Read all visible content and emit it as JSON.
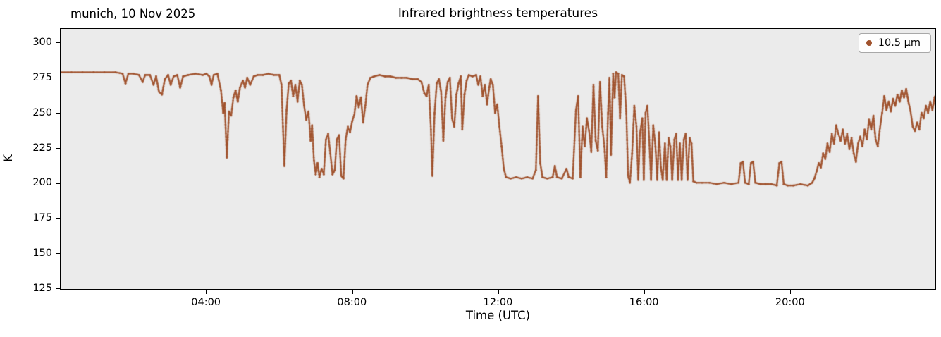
{
  "figure": {
    "annotation": "munich, 10 Nov 2025",
    "title": "Infrared brightness temperatures",
    "xlabel": "Time (UTC)",
    "ylabel": "K",
    "legend": {
      "label": "10.5 μm",
      "marker_color": "#A0522D"
    },
    "colors": {
      "series": "#A0522D",
      "plot_bg": "#EBEBEB",
      "fig_bg": "#FFFFFF",
      "text": "#000000"
    }
  },
  "chart_data": {
    "type": "scatter",
    "title": "Infrared brightness temperatures",
    "annotation": "munich, 10 Nov 2025",
    "xlabel": "Time (UTC)",
    "ylabel": "K",
    "xlim": [
      0,
      24
    ],
    "ylim": [
      124,
      310
    ],
    "grid": false,
    "legend_position": "upper right",
    "xticks": [
      {
        "t": 4,
        "label": "04:00"
      },
      {
        "t": 8,
        "label": "08:00"
      },
      {
        "t": 12,
        "label": "12:00"
      },
      {
        "t": 16,
        "label": "16:00"
      },
      {
        "t": 20,
        "label": "20:00"
      }
    ],
    "yticks": [
      125,
      150,
      175,
      200,
      225,
      250,
      275,
      300
    ],
    "series": [
      {
        "name": "10.5 μm",
        "color": "#A0522D",
        "points": [
          [
            0.0,
            279
          ],
          [
            0.3,
            279
          ],
          [
            0.6,
            279
          ],
          [
            0.9,
            279
          ],
          [
            1.2,
            279
          ],
          [
            1.5,
            279
          ],
          [
            1.7,
            278
          ],
          [
            1.78,
            271
          ],
          [
            1.86,
            278
          ],
          [
            2.0,
            278
          ],
          [
            2.15,
            277
          ],
          [
            2.25,
            272
          ],
          [
            2.32,
            277
          ],
          [
            2.45,
            277
          ],
          [
            2.55,
            270
          ],
          [
            2.62,
            276
          ],
          [
            2.7,
            265
          ],
          [
            2.78,
            263
          ],
          [
            2.86,
            274
          ],
          [
            2.95,
            277
          ],
          [
            3.02,
            270
          ],
          [
            3.1,
            276
          ],
          [
            3.2,
            277
          ],
          [
            3.28,
            268
          ],
          [
            3.36,
            276
          ],
          [
            3.5,
            277
          ],
          [
            3.7,
            278
          ],
          [
            3.9,
            277
          ],
          [
            4.0,
            278
          ],
          [
            4.08,
            276
          ],
          [
            4.14,
            270
          ],
          [
            4.2,
            277
          ],
          [
            4.3,
            278
          ],
          [
            4.4,
            266
          ],
          [
            4.46,
            250
          ],
          [
            4.5,
            257
          ],
          [
            4.56,
            218
          ],
          [
            4.62,
            251
          ],
          [
            4.68,
            248
          ],
          [
            4.74,
            261
          ],
          [
            4.8,
            266
          ],
          [
            4.86,
            258
          ],
          [
            4.92,
            268
          ],
          [
            5.0,
            273
          ],
          [
            5.06,
            268
          ],
          [
            5.12,
            275
          ],
          [
            5.2,
            270
          ],
          [
            5.3,
            276
          ],
          [
            5.4,
            277
          ],
          [
            5.55,
            277
          ],
          [
            5.7,
            278
          ],
          [
            5.85,
            277
          ],
          [
            6.0,
            277
          ],
          [
            6.06,
            270
          ],
          [
            6.1,
            240
          ],
          [
            6.14,
            212
          ],
          [
            6.2,
            252
          ],
          [
            6.26,
            271
          ],
          [
            6.32,
            273
          ],
          [
            6.38,
            262
          ],
          [
            6.44,
            270
          ],
          [
            6.5,
            258
          ],
          [
            6.56,
            273
          ],
          [
            6.62,
            270
          ],
          [
            6.68,
            255
          ],
          [
            6.74,
            245
          ],
          [
            6.8,
            251
          ],
          [
            6.86,
            230
          ],
          [
            6.9,
            241
          ],
          [
            6.95,
            216
          ],
          [
            7.0,
            206
          ],
          [
            7.05,
            214
          ],
          [
            7.1,
            204
          ],
          [
            7.16,
            210
          ],
          [
            7.22,
            206
          ],
          [
            7.28,
            231
          ],
          [
            7.34,
            235
          ],
          [
            7.4,
            221
          ],
          [
            7.46,
            206
          ],
          [
            7.52,
            209
          ],
          [
            7.58,
            231
          ],
          [
            7.64,
            234
          ],
          [
            7.7,
            205
          ],
          [
            7.76,
            203
          ],
          [
            7.82,
            231
          ],
          [
            7.88,
            240
          ],
          [
            7.94,
            236
          ],
          [
            8.0,
            244
          ],
          [
            8.06,
            249
          ],
          [
            8.12,
            262
          ],
          [
            8.18,
            254
          ],
          [
            8.24,
            261
          ],
          [
            8.3,
            243
          ],
          [
            8.36,
            255
          ],
          [
            8.42,
            270
          ],
          [
            8.5,
            275
          ],
          [
            8.6,
            276
          ],
          [
            8.75,
            277
          ],
          [
            8.9,
            276
          ],
          [
            9.05,
            276
          ],
          [
            9.2,
            275
          ],
          [
            9.35,
            275
          ],
          [
            9.5,
            275
          ],
          [
            9.65,
            274
          ],
          [
            9.8,
            274
          ],
          [
            9.9,
            272
          ],
          [
            9.98,
            264
          ],
          [
            10.04,
            262
          ],
          [
            10.1,
            270
          ],
          [
            10.16,
            238
          ],
          [
            10.2,
            205
          ],
          [
            10.26,
            250
          ],
          [
            10.32,
            271
          ],
          [
            10.38,
            274
          ],
          [
            10.44,
            265
          ],
          [
            10.5,
            230
          ],
          [
            10.56,
            261
          ],
          [
            10.62,
            272
          ],
          [
            10.68,
            275
          ],
          [
            10.74,
            246
          ],
          [
            10.8,
            240
          ],
          [
            10.86,
            263
          ],
          [
            10.92,
            271
          ],
          [
            10.98,
            276
          ],
          [
            11.02,
            238
          ],
          [
            11.08,
            263
          ],
          [
            11.14,
            273
          ],
          [
            11.2,
            277
          ],
          [
            11.3,
            276
          ],
          [
            11.4,
            277
          ],
          [
            11.46,
            270
          ],
          [
            11.52,
            276
          ],
          [
            11.58,
            262
          ],
          [
            11.64,
            270
          ],
          [
            11.7,
            256
          ],
          [
            11.76,
            268
          ],
          [
            11.8,
            274
          ],
          [
            11.86,
            270
          ],
          [
            11.92,
            250
          ],
          [
            11.98,
            256
          ],
          [
            12.04,
            240
          ],
          [
            12.1,
            226
          ],
          [
            12.16,
            210
          ],
          [
            12.22,
            204
          ],
          [
            12.35,
            203
          ],
          [
            12.5,
            204
          ],
          [
            12.65,
            203
          ],
          [
            12.8,
            204
          ],
          [
            12.95,
            203
          ],
          [
            13.04,
            209
          ],
          [
            13.1,
            262
          ],
          [
            13.16,
            214
          ],
          [
            13.22,
            204
          ],
          [
            13.35,
            203
          ],
          [
            13.5,
            204
          ],
          [
            13.56,
            212
          ],
          [
            13.62,
            204
          ],
          [
            13.75,
            203
          ],
          [
            13.88,
            210
          ],
          [
            13.94,
            204
          ],
          [
            14.05,
            203
          ],
          [
            14.14,
            252
          ],
          [
            14.2,
            262
          ],
          [
            14.26,
            204
          ],
          [
            14.32,
            240
          ],
          [
            14.38,
            226
          ],
          [
            14.44,
            246
          ],
          [
            14.5,
            237
          ],
          [
            14.56,
            222
          ],
          [
            14.62,
            270
          ],
          [
            14.68,
            230
          ],
          [
            14.74,
            223
          ],
          [
            14.8,
            272
          ],
          [
            14.86,
            240
          ],
          [
            14.92,
            226
          ],
          [
            14.97,
            204
          ],
          [
            15.02,
            250
          ],
          [
            15.06,
            275
          ],
          [
            15.1,
            220
          ],
          [
            15.16,
            278
          ],
          [
            15.2,
            261
          ],
          [
            15.24,
            279
          ],
          [
            15.3,
            278
          ],
          [
            15.35,
            246
          ],
          [
            15.4,
            277
          ],
          [
            15.46,
            276
          ],
          [
            15.52,
            251
          ],
          [
            15.57,
            205
          ],
          [
            15.62,
            200
          ],
          [
            15.68,
            221
          ],
          [
            15.74,
            255
          ],
          [
            15.8,
            240
          ],
          [
            15.85,
            202
          ],
          [
            15.9,
            236
          ],
          [
            15.96,
            246
          ],
          [
            16.0,
            202
          ],
          [
            16.05,
            250
          ],
          [
            16.1,
            255
          ],
          [
            16.15,
            231
          ],
          [
            16.2,
            202
          ],
          [
            16.26,
            241
          ],
          [
            16.32,
            226
          ],
          [
            16.37,
            202
          ],
          [
            16.42,
            236
          ],
          [
            16.47,
            211
          ],
          [
            16.52,
            202
          ],
          [
            16.58,
            228
          ],
          [
            16.63,
            202
          ],
          [
            16.68,
            232
          ],
          [
            16.73,
            226
          ],
          [
            16.78,
            202
          ],
          [
            16.84,
            231
          ],
          [
            16.89,
            235
          ],
          [
            16.94,
            202
          ],
          [
            16.99,
            228
          ],
          [
            17.04,
            202
          ],
          [
            17.1,
            231
          ],
          [
            17.15,
            235
          ],
          [
            17.2,
            202
          ],
          [
            17.26,
            232
          ],
          [
            17.31,
            228
          ],
          [
            17.36,
            201
          ],
          [
            17.45,
            200
          ],
          [
            17.6,
            200
          ],
          [
            17.8,
            200
          ],
          [
            18.0,
            199
          ],
          [
            18.2,
            200
          ],
          [
            18.4,
            199
          ],
          [
            18.6,
            200
          ],
          [
            18.66,
            214
          ],
          [
            18.72,
            215
          ],
          [
            18.78,
            200
          ],
          [
            18.88,
            199
          ],
          [
            18.94,
            214
          ],
          [
            19.0,
            215
          ],
          [
            19.06,
            200
          ],
          [
            19.2,
            199
          ],
          [
            19.35,
            199
          ],
          [
            19.5,
            199
          ],
          [
            19.65,
            198
          ],
          [
            19.72,
            214
          ],
          [
            19.78,
            215
          ],
          [
            19.84,
            199
          ],
          [
            19.95,
            198
          ],
          [
            20.1,
            198
          ],
          [
            20.3,
            199
          ],
          [
            20.5,
            198
          ],
          [
            20.62,
            200
          ],
          [
            20.68,
            203
          ],
          [
            20.74,
            208
          ],
          [
            20.8,
            214
          ],
          [
            20.86,
            211
          ],
          [
            20.92,
            221
          ],
          [
            20.98,
            217
          ],
          [
            21.04,
            228
          ],
          [
            21.1,
            222
          ],
          [
            21.16,
            235
          ],
          [
            21.22,
            228
          ],
          [
            21.28,
            241
          ],
          [
            21.34,
            235
          ],
          [
            21.4,
            230
          ],
          [
            21.46,
            238
          ],
          [
            21.52,
            228
          ],
          [
            21.58,
            235
          ],
          [
            21.64,
            224
          ],
          [
            21.7,
            232
          ],
          [
            21.76,
            221
          ],
          [
            21.82,
            215
          ],
          [
            21.88,
            228
          ],
          [
            21.94,
            233
          ],
          [
            22.0,
            226
          ],
          [
            22.06,
            238
          ],
          [
            22.12,
            231
          ],
          [
            22.18,
            245
          ],
          [
            22.24,
            238
          ],
          [
            22.3,
            248
          ],
          [
            22.36,
            231
          ],
          [
            22.42,
            226
          ],
          [
            22.48,
            239
          ],
          [
            22.54,
            250
          ],
          [
            22.6,
            262
          ],
          [
            22.66,
            252
          ],
          [
            22.72,
            258
          ],
          [
            22.78,
            251
          ],
          [
            22.84,
            260
          ],
          [
            22.9,
            255
          ],
          [
            22.96,
            263
          ],
          [
            23.02,
            258
          ],
          [
            23.08,
            266
          ],
          [
            23.14,
            261
          ],
          [
            23.2,
            267
          ],
          [
            23.26,
            258
          ],
          [
            23.32,
            251
          ],
          [
            23.38,
            240
          ],
          [
            23.44,
            237
          ],
          [
            23.5,
            243
          ],
          [
            23.56,
            238
          ],
          [
            23.62,
            250
          ],
          [
            23.68,
            246
          ],
          [
            23.74,
            255
          ],
          [
            23.8,
            250
          ],
          [
            23.86,
            258
          ],
          [
            23.92,
            252
          ],
          [
            23.98,
            261
          ],
          [
            24.0,
            262
          ]
        ]
      }
    ]
  }
}
